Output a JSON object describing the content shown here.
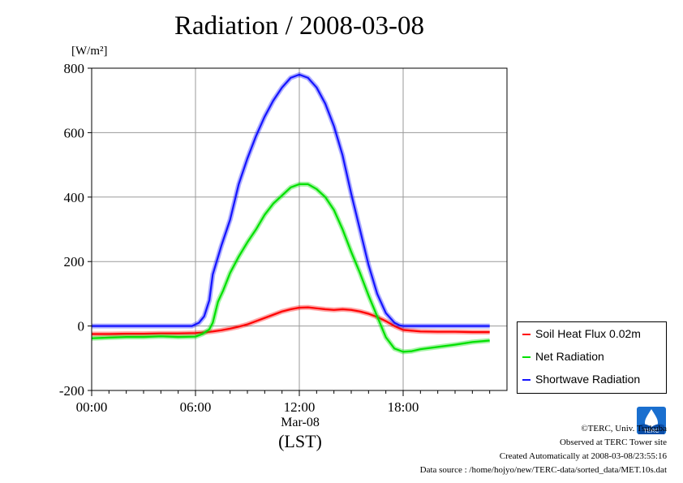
{
  "title": "Radiation / 2008-03-08",
  "unit_label": "[W/m²]",
  "x_date_label": "Mar-08",
  "x_axis_label": "(LST)",
  "legend": [
    {
      "label": "Soil Heat Flux 0.02m",
      "color": "#ff0000"
    },
    {
      "label": "Net Radiation",
      "color": "#00e000"
    },
    {
      "label": "Shortwave Radiation",
      "color": "#1414ff"
    }
  ],
  "footer": {
    "copyright": "©TERC, Univ. Tsukuba",
    "site": "Observed at TERC Tower site",
    "created": "Created Automatically at 2008-03-08/23:55:16",
    "source": "Data source : /home/hojyo/new/TERC-data/sorted_data/MET.10s.dat"
  },
  "logo_text": "TERC",
  "chart_data": {
    "type": "line",
    "title": "Radiation / 2008-03-08",
    "xlabel": "(LST)",
    "ylabel": "[W/m²]",
    "x_unit": "hour of day (LST)",
    "xlim": [
      0,
      24
    ],
    "ylim": [
      -200,
      800
    ],
    "x_ticks": [
      "00:00",
      "06:00",
      "12:00",
      "18:00"
    ],
    "y_ticks": [
      "800",
      "600",
      "400",
      "200",
      "0",
      "-200"
    ],
    "grid": true,
    "legend_position": "right, outside bottom",
    "series": [
      {
        "name": "Soil Heat Flux 0.02m",
        "color": "#ff0000",
        "x": [
          0,
          1,
          2,
          3,
          4,
          5,
          6,
          6.5,
          7,
          7.5,
          8,
          8.5,
          9,
          9.5,
          10,
          10.5,
          11,
          11.5,
          12,
          12.5,
          13,
          13.5,
          14,
          14.5,
          15,
          15.5,
          16,
          16.5,
          17,
          17.5,
          18,
          19,
          20,
          21,
          22,
          23
        ],
        "y": [
          -25,
          -25,
          -24,
          -24,
          -23,
          -23,
          -22,
          -20,
          -17,
          -13,
          -8,
          -2,
          5,
          15,
          25,
          35,
          45,
          52,
          57,
          58,
          55,
          52,
          50,
          52,
          50,
          45,
          38,
          28,
          15,
          0,
          -12,
          -17,
          -18,
          -18,
          -19,
          -19
        ]
      },
      {
        "name": "Net Radiation",
        "color": "#00e000",
        "x": [
          0,
          1,
          2,
          3,
          4,
          5,
          6,
          6.4,
          6.8,
          7,
          7.3,
          7.6,
          8,
          8.5,
          9,
          9.5,
          10,
          10.5,
          11,
          11.5,
          12,
          12.5,
          13,
          13.5,
          14,
          14.5,
          15,
          15.5,
          16,
          16.5,
          17,
          17.5,
          18,
          18.5,
          19,
          20,
          21,
          22,
          23
        ],
        "y": [
          -38,
          -36,
          -34,
          -34,
          -32,
          -34,
          -33,
          -25,
          -10,
          10,
          75,
          110,
          165,
          215,
          260,
          300,
          345,
          380,
          405,
          430,
          440,
          440,
          425,
          400,
          360,
          300,
          230,
          165,
          95,
          30,
          -35,
          -70,
          -80,
          -78,
          -72,
          -65,
          -58,
          -50,
          -45
        ]
      },
      {
        "name": "Shortwave Radiation",
        "color": "#1414ff",
        "x": [
          0,
          1,
          2,
          3,
          4,
          5,
          5.8,
          6.2,
          6.5,
          6.8,
          7,
          7.5,
          8,
          8.5,
          9,
          9.5,
          10,
          10.5,
          11,
          11.5,
          12,
          12.5,
          13,
          13.5,
          14,
          14.5,
          15,
          15.5,
          16,
          16.5,
          17,
          17.5,
          17.8,
          18,
          19,
          20,
          21,
          22,
          23
        ],
        "y": [
          0,
          0,
          0,
          0,
          0,
          0,
          0,
          10,
          30,
          80,
          160,
          250,
          330,
          440,
          520,
          590,
          650,
          700,
          740,
          770,
          780,
          770,
          740,
          690,
          620,
          530,
          410,
          300,
          190,
          100,
          40,
          10,
          2,
          0,
          0,
          0,
          0,
          0,
          0
        ]
      }
    ]
  }
}
